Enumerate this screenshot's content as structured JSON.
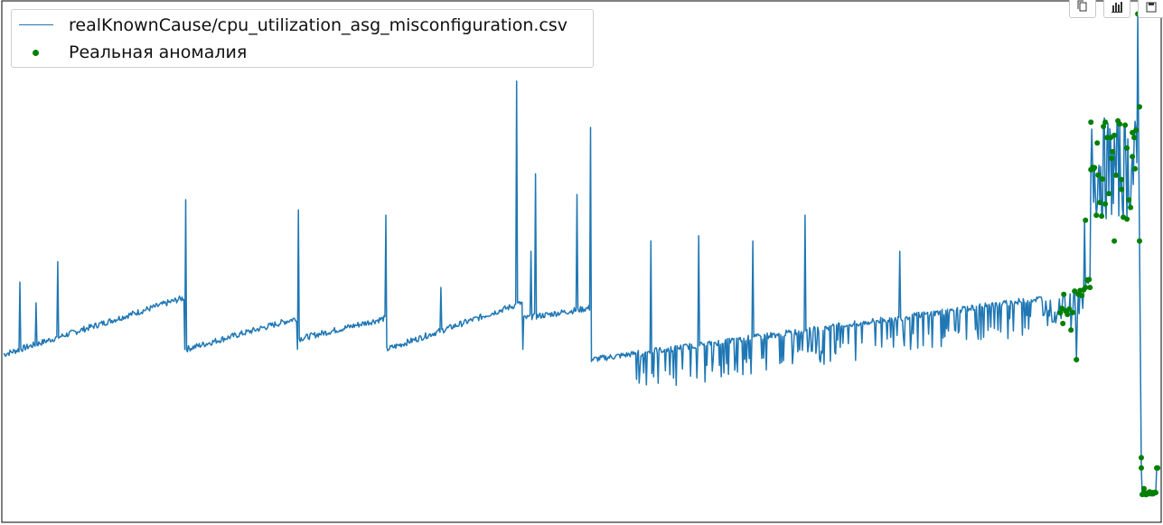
{
  "toolbar": {
    "buttons": [
      {
        "name": "copy",
        "icon": "copy-icon"
      },
      {
        "name": "chart",
        "icon": "bar-chart-icon"
      },
      {
        "name": "save",
        "icon": "save-icon"
      }
    ]
  },
  "chart_data": {
    "type": "line",
    "title": "",
    "xlabel": "",
    "ylabel": "",
    "grid": false,
    "legend_position": "upper-left",
    "ylim": [
      0,
      100
    ],
    "xlim": [
      0,
      1280
    ],
    "series": [
      {
        "name": "realKnownCause/cpu_utilization_asg_misconfiguration.csv",
        "color": "#1f77b4",
        "style": "line"
      },
      {
        "name": "Реальная аномалия",
        "color": "#008000",
        "style": "markers"
      }
    ],
    "legend": [
      {
        "label": "realKnownCause/cpu_utilization_asg_misconfiguration.csv",
        "kind": "line",
        "color": "#1f77b4"
      },
      {
        "label": "Реальная аномалия",
        "kind": "marker",
        "color": "#008000"
      }
    ],
    "baseline_segments": [
      {
        "x0": 0,
        "x1": 200,
        "y0": 32,
        "y1": 43
      },
      {
        "x0": 202,
        "x1": 325,
        "y0": 33,
        "y1": 39
      },
      {
        "x0": 327,
        "x1": 423,
        "y0": 35,
        "y1": 39
      },
      {
        "x0": 425,
        "x1": 575,
        "y0": 33,
        "y1": 42
      },
      {
        "x0": 577,
        "x1": 650,
        "y0": 39,
        "y1": 41
      },
      {
        "x0": 652,
        "x1": 1200,
        "y0": 31,
        "y1": 44
      }
    ],
    "spikes": [
      {
        "x": 18,
        "y": 46
      },
      {
        "x": 36,
        "y": 42
      },
      {
        "x": 60,
        "y": 50
      },
      {
        "x": 202,
        "y": 62
      },
      {
        "x": 327,
        "y": 60
      },
      {
        "x": 424,
        "y": 59
      },
      {
        "x": 485,
        "y": 45
      },
      {
        "x": 569,
        "y": 85
      },
      {
        "x": 590,
        "y": 67
      },
      {
        "x": 585,
        "y": 52
      },
      {
        "x": 636,
        "y": 63
      },
      {
        "x": 651,
        "y": 76
      },
      {
        "x": 718,
        "y": 54
      },
      {
        "x": 771,
        "y": 55
      },
      {
        "x": 831,
        "y": 54
      },
      {
        "x": 889,
        "y": 59
      },
      {
        "x": 994,
        "y": 52
      }
    ],
    "anomaly_windows": [
      {
        "x0": 1172,
        "x1": 1205,
        "y_range": [
          30,
          45
        ]
      },
      {
        "x0": 1199,
        "x1": 1258,
        "y_range": [
          55,
          80
        ]
      },
      {
        "x0": 1258,
        "x1": 1280,
        "y_range": [
          4,
          100
        ]
      }
    ],
    "anomaly_points": [
      [
        1190,
        31
      ],
      [
        1175,
        38
      ],
      [
        1205,
        45
      ],
      [
        1200,
        58
      ],
      [
        1206,
        77
      ],
      [
        1209,
        68
      ],
      [
        1213,
        73
      ],
      [
        1219,
        66
      ],
      [
        1222,
        77
      ],
      [
        1229,
        70
      ],
      [
        1232,
        54
      ],
      [
        1240,
        64
      ],
      [
        1246,
        72
      ],
      [
        1252,
        75
      ],
      [
        1255,
        68
      ],
      [
        1259,
        98
      ],
      [
        1260,
        80
      ],
      [
        1262,
        12
      ],
      [
        1265,
        6
      ],
      [
        1268,
        5
      ],
      [
        1275,
        5
      ],
      [
        1280,
        10
      ]
    ]
  }
}
